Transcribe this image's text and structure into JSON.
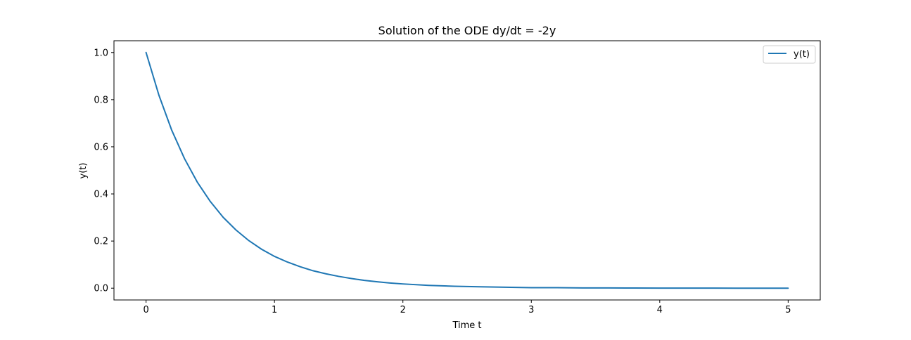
{
  "chart_data": {
    "type": "line",
    "title": "Solution of the ODE dy/dt = -2y",
    "xlabel": "Time t",
    "ylabel": "y(t)",
    "xlim": [
      -0.25,
      5.25
    ],
    "ylim": [
      -0.05,
      1.05
    ],
    "x_ticks": [
      0,
      1,
      2,
      3,
      4,
      5
    ],
    "x_tick_labels": [
      "0",
      "1",
      "2",
      "3",
      "4",
      "5"
    ],
    "y_ticks": [
      0.0,
      0.2,
      0.4,
      0.6,
      0.8,
      1.0
    ],
    "y_tick_labels": [
      "0.0",
      "0.2",
      "0.4",
      "0.6",
      "0.8",
      "1.0"
    ],
    "grid": false,
    "legend_position": "top-right",
    "series": [
      {
        "name": "y(t)",
        "color": "#1f77b4",
        "x": [
          0,
          0.1,
          0.2,
          0.3,
          0.4,
          0.5,
          0.6,
          0.7,
          0.8,
          0.9,
          1.0,
          1.1,
          1.2,
          1.3,
          1.4,
          1.5,
          1.6,
          1.7,
          1.8,
          1.9,
          2.0,
          2.2,
          2.4,
          2.6,
          2.8,
          3.0,
          3.2,
          3.4,
          3.6,
          3.8,
          4.0,
          4.2,
          4.4,
          4.6,
          4.8,
          5.0
        ],
        "y": [
          1.0,
          0.819,
          0.67,
          0.549,
          0.449,
          0.368,
          0.301,
          0.247,
          0.202,
          0.165,
          0.135,
          0.111,
          0.091,
          0.074,
          0.061,
          0.05,
          0.041,
          0.033,
          0.027,
          0.022,
          0.018,
          0.012,
          0.008,
          0.006,
          0.004,
          0.002,
          0.002,
          0.001,
          0.001,
          0.0005,
          0.0003,
          0.0002,
          0.0002,
          0.0001,
          0.0001,
          5e-05
        ]
      }
    ]
  }
}
